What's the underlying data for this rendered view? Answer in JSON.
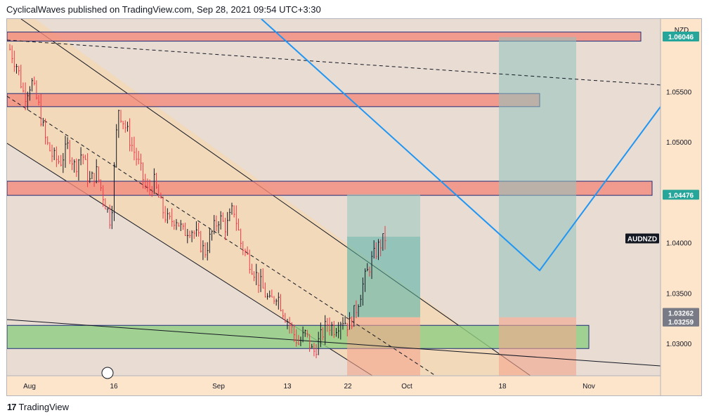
{
  "header": {
    "text": "CyclicalWaves published on TradingView.com, Sep 28, 2021 09:54 UTC+3:30"
  },
  "footer": {
    "logo": "17",
    "brand": "TradingView"
  },
  "chart_data": {
    "type": "candlestick",
    "symbol": "AUDNZD",
    "currency": "NZD",
    "ylim": [
      1.0268,
      1.0622
    ],
    "y_ticks": [
      "1.05500",
      "1.05000",
      "1.04000",
      "1.03500",
      "1.03000"
    ],
    "y_tick_values": [
      1.055,
      1.05,
      1.04,
      1.035,
      1.03
    ],
    "x_ticks": [
      "Aug",
      "16",
      "Sep",
      "13",
      "22",
      "Oct",
      "18",
      "Nov"
    ],
    "price_tags": [
      {
        "label": "1.06046",
        "value": 1.06046,
        "color": "#26a69a"
      },
      {
        "label": "1.04476",
        "value": 1.04476,
        "color": "#26a69a"
      },
      {
        "label": "AUDNZD",
        "value": 1.04042,
        "color": "#131722"
      },
      {
        "label": "1.03262",
        "value": 1.03262,
        "color": "#787b86"
      },
      {
        "label": "1.03259",
        "value": 1.03259,
        "color": "#787b86"
      }
    ],
    "zones": [
      {
        "kind": "resistance",
        "top": 1.0609,
        "bottom": 1.06,
        "color": "#f28b7d"
      },
      {
        "kind": "resistance",
        "top": 1.0548,
        "bottom": 1.0535,
        "color": "#f28b7d"
      },
      {
        "kind": "resistance",
        "top": 1.0461,
        "bottom": 1.0447,
        "color": "#f28b7d"
      },
      {
        "kind": "support",
        "top": 1.0318,
        "bottom": 1.0295,
        "color": "#8fce82"
      }
    ],
    "candle_path": [
      1.0592,
      1.0575,
      1.0545,
      1.056,
      1.0535,
      1.05,
      1.0485,
      1.048,
      1.0495,
      1.0475,
      1.049,
      1.046,
      1.047,
      1.0445,
      1.042,
      1.0535,
      1.0515,
      1.0495,
      1.0475,
      1.045,
      1.046,
      1.0435,
      1.042,
      1.0425,
      1.041,
      1.0415,
      1.0405,
      1.039,
      1.041,
      1.0425,
      1.0415,
      1.0435,
      1.04,
      1.0385,
      1.037,
      1.0355,
      1.034,
      1.035,
      1.033,
      1.0315,
      1.03,
      1.031,
      1.029,
      1.0305,
      1.032,
      1.0315,
      1.0325,
      1.0318,
      1.0335,
      1.036,
      1.038,
      1.0395,
      1.0405
    ],
    "colors": {
      "up": "#131722",
      "down": "#f23645",
      "line": "#2196f3",
      "channel": "#ffd59c"
    }
  }
}
